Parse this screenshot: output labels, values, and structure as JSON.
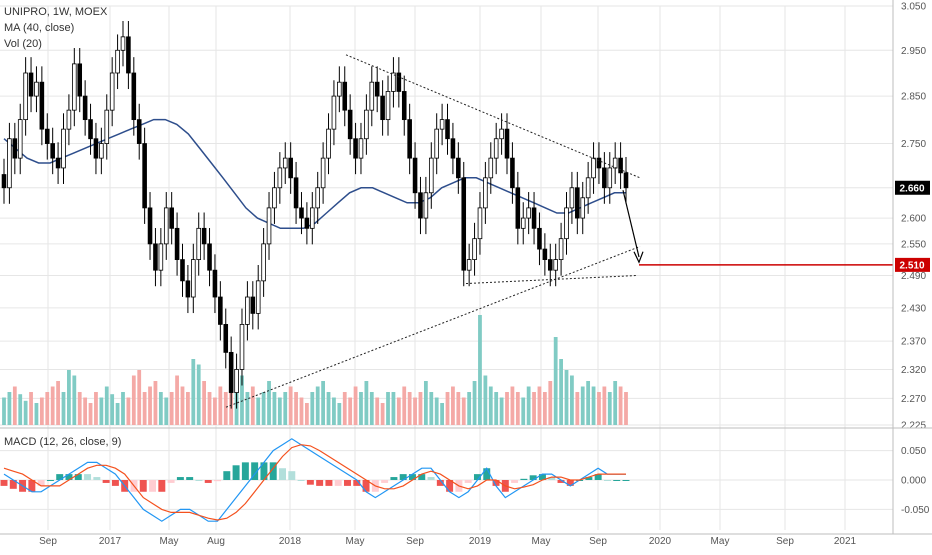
{
  "colors": {
    "up": "#26a69a",
    "down": "#ef5350",
    "vol_up": "#80cbc4",
    "vol_down": "#f4a9a6",
    "ma": "#2e4e8c",
    "macd": "#2196f3",
    "signal": "#f4511e",
    "target": "#cc0000",
    "last_price": "#000000",
    "grid": "#e6e6e6",
    "text": "#333333"
  },
  "chart_data": [
    {
      "type": "candlestick",
      "title": "UNIPRO, 1W, MOEX",
      "legend": [
        "MA (40, close)",
        "Vol (20)"
      ],
      "x_axis": [
        "Sep",
        "2017",
        "May",
        "Aug",
        "2018",
        "May",
        "Sep",
        "2019",
        "May",
        "Sep",
        "2020",
        "May",
        "Sep",
        "2021"
      ],
      "y_ticks": [
        2.225,
        2.27,
        2.32,
        2.37,
        2.43,
        2.49,
        2.55,
        2.6,
        2.66,
        2.75,
        2.85,
        2.95,
        3.05
      ],
      "ylim": [
        2.225,
        3.05
      ],
      "y_scale": "log",
      "last_price": 2.66,
      "target_price": 2.51,
      "close": [
        2.66,
        2.76,
        2.72,
        2.8,
        2.9,
        2.85,
        2.88,
        2.78,
        2.75,
        2.72,
        2.7,
        2.78,
        2.82,
        2.92,
        2.85,
        2.8,
        2.76,
        2.72,
        2.75,
        2.82,
        2.9,
        2.95,
        2.98,
        2.9,
        2.8,
        2.75,
        2.62,
        2.55,
        2.5,
        2.55,
        2.62,
        2.58,
        2.52,
        2.48,
        2.45,
        2.52,
        2.58,
        2.55,
        2.5,
        2.45,
        2.4,
        2.35,
        2.28,
        2.32,
        2.4,
        2.45,
        2.42,
        2.48,
        2.55,
        2.62,
        2.66,
        2.7,
        2.72,
        2.68,
        2.62,
        2.6,
        2.58,
        2.62,
        2.66,
        2.72,
        2.78,
        2.85,
        2.88,
        2.82,
        2.76,
        2.72,
        2.76,
        2.82,
        2.88,
        2.85,
        2.8,
        2.86,
        2.9,
        2.86,
        2.8,
        2.72,
        2.65,
        2.6,
        2.65,
        2.72,
        2.78,
        2.8,
        2.76,
        2.72,
        2.68,
        2.5,
        2.52,
        2.56,
        2.62,
        2.68,
        2.72,
        2.76,
        2.78,
        2.72,
        2.66,
        2.58,
        2.6,
        2.62,
        2.58,
        2.54,
        2.52,
        2.5,
        2.52,
        2.56,
        2.62,
        2.66,
        2.6,
        2.64,
        2.68,
        2.72,
        2.7,
        2.66,
        2.7,
        2.72,
        2.69,
        2.66
      ],
      "ma_40": [
        2.76,
        2.74,
        2.72,
        2.71,
        2.71,
        2.72,
        2.73,
        2.74,
        2.75,
        2.76,
        2.77,
        2.78,
        2.79,
        2.8,
        2.8,
        2.79,
        2.77,
        2.74,
        2.71,
        2.68,
        2.65,
        2.62,
        2.6,
        2.59,
        2.58,
        2.58,
        2.58,
        2.59,
        2.61,
        2.63,
        2.65,
        2.66,
        2.66,
        2.65,
        2.64,
        2.63,
        2.63,
        2.64,
        2.66,
        2.67,
        2.68,
        2.68,
        2.67,
        2.66,
        2.65,
        2.64,
        2.63,
        2.62,
        2.61,
        2.61,
        2.62,
        2.63,
        2.64,
        2.65,
        2.65
      ],
      "volume_relative": [
        0.25,
        0.3,
        0.35,
        0.28,
        0.22,
        0.3,
        0.2,
        0.25,
        0.3,
        0.35,
        0.4,
        0.3,
        0.5,
        0.45,
        0.3,
        0.25,
        0.2,
        0.3,
        0.25,
        0.35,
        0.28,
        0.2,
        0.3,
        0.25,
        0.45,
        0.5,
        0.3,
        0.35,
        0.4,
        0.3,
        0.25,
        0.3,
        0.45,
        0.35,
        0.3,
        0.6,
        0.55,
        0.4,
        0.3,
        0.25,
        0.35,
        0.3,
        0.4,
        0.5,
        0.45,
        0.3,
        0.35,
        0.25,
        0.3,
        0.4,
        0.3,
        0.25,
        0.3,
        0.35,
        0.3,
        0.25,
        0.2,
        0.3,
        0.35,
        0.4,
        0.3,
        0.25,
        0.2,
        0.3,
        0.25,
        0.35,
        0.3,
        0.4,
        0.3,
        0.25,
        0.2,
        0.3,
        0.3,
        0.25,
        0.35,
        0.3,
        0.25,
        0.3,
        0.4,
        0.3,
        0.25,
        0.2,
        0.3,
        0.35,
        0.3,
        0.25,
        0.3,
        0.4,
        1.0,
        0.45,
        0.35,
        0.3,
        0.25,
        0.3,
        0.35,
        0.3,
        0.25,
        0.35,
        0.3,
        0.35,
        0.3,
        0.4,
        0.8,
        0.6,
        0.5,
        0.45,
        0.3,
        0.35,
        0.4,
        0.35,
        0.3,
        0.35,
        0.3,
        0.4,
        0.35,
        0.3
      ]
    },
    {
      "type": "line",
      "title": "MACD (12, 26, close, 9)",
      "y_ticks": [
        0.05,
        0.0,
        -0.05
      ],
      "ylim": [
        -0.085,
        0.085
      ],
      "macd": [
        0.01,
        0.0,
        -0.01,
        -0.02,
        -0.02,
        -0.01,
        0.0,
        0.01,
        0.02,
        0.03,
        0.03,
        0.02,
        0.01,
        -0.01,
        -0.03,
        -0.05,
        -0.06,
        -0.07,
        -0.06,
        -0.05,
        -0.05,
        -0.06,
        -0.07,
        -0.07,
        -0.05,
        -0.03,
        -0.01,
        0.01,
        0.03,
        0.05,
        0.06,
        0.07,
        0.06,
        0.05,
        0.04,
        0.03,
        0.02,
        0.01,
        0.0,
        -0.02,
        -0.03,
        -0.02,
        -0.01,
        0.0,
        0.01,
        0.02,
        0.02,
        0.0,
        -0.02,
        -0.03,
        -0.02,
        0.0,
        0.02,
        -0.01,
        -0.03,
        -0.02,
        -0.01,
        0.0,
        0.01,
        0.01,
        0.0,
        -0.01,
        0.0,
        0.01,
        0.02,
        0.01,
        0.01,
        0.01
      ],
      "signal": [
        0.02,
        0.015,
        0.01,
        0.0,
        -0.01,
        -0.01,
        -0.01,
        0.0,
        0.01,
        0.02,
        0.025,
        0.025,
        0.02,
        0.01,
        -0.01,
        -0.03,
        -0.04,
        -0.05,
        -0.055,
        -0.055,
        -0.055,
        -0.06,
        -0.065,
        -0.068,
        -0.065,
        -0.055,
        -0.04,
        -0.02,
        0.0,
        0.02,
        0.04,
        0.055,
        0.06,
        0.058,
        0.05,
        0.04,
        0.03,
        0.02,
        0.01,
        0.0,
        -0.01,
        -0.015,
        -0.015,
        -0.01,
        0.0,
        0.01,
        0.015,
        0.01,
        0.0,
        -0.01,
        -0.015,
        -0.01,
        0.0,
        0.0,
        -0.01,
        -0.015,
        -0.012,
        -0.008,
        0.0,
        0.005,
        0.005,
        0.0,
        0.0,
        0.005,
        0.01,
        0.01,
        0.01,
        0.01
      ]
    }
  ]
}
